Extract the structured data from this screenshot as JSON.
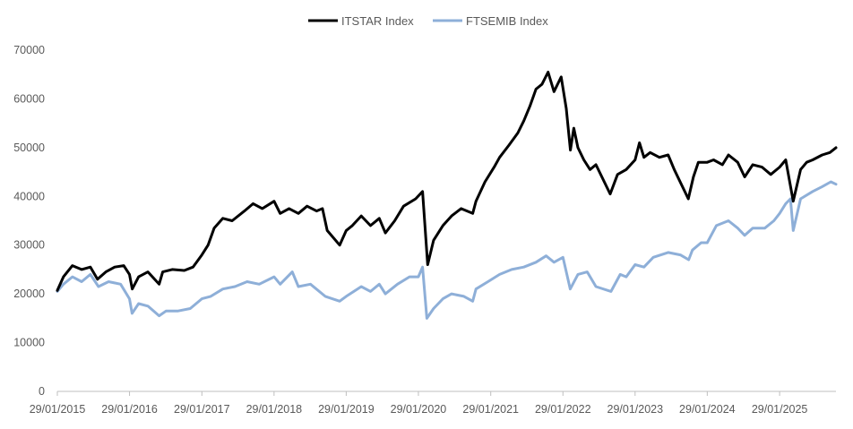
{
  "chart_data": {
    "type": "line",
    "title": "",
    "xlabel": "",
    "ylabel": "",
    "ylim": [
      0,
      70000
    ],
    "yticks": [
      0,
      10000,
      20000,
      30000,
      40000,
      50000,
      60000,
      70000
    ],
    "xlim": [
      "2015-01-29",
      "2025-11-10"
    ],
    "xticks": [
      "29/01/2015",
      "29/01/2016",
      "29/01/2017",
      "29/01/2018",
      "29/01/2019",
      "29/01/2020",
      "29/01/2021",
      "29/01/2022",
      "29/01/2023",
      "29/01/2024",
      "29/01/2025"
    ],
    "grid": false,
    "legend": "top-center",
    "series": [
      {
        "name": "ITSTAR Index",
        "color": "#000000",
        "points": [
          [
            "2015-01-29",
            20700
          ],
          [
            "2015-03-01",
            23500
          ],
          [
            "2015-04-15",
            25800
          ],
          [
            "2015-06-01",
            25000
          ],
          [
            "2015-07-15",
            25500
          ],
          [
            "2015-08-20",
            23000
          ],
          [
            "2015-10-01",
            24500
          ],
          [
            "2015-11-15",
            25500
          ],
          [
            "2015-12-31",
            25800
          ],
          [
            "2016-01-29",
            24000
          ],
          [
            "2016-02-12",
            21000
          ],
          [
            "2016-03-15",
            23500
          ],
          [
            "2016-05-01",
            24500
          ],
          [
            "2016-06-27",
            22000
          ],
          [
            "2016-07-15",
            24500
          ],
          [
            "2016-09-01",
            25000
          ],
          [
            "2016-11-01",
            24800
          ],
          [
            "2016-12-15",
            25500
          ],
          [
            "2017-01-29",
            28000
          ],
          [
            "2017-03-01",
            30000
          ],
          [
            "2017-04-01",
            33500
          ],
          [
            "2017-05-15",
            35500
          ],
          [
            "2017-07-01",
            35000
          ],
          [
            "2017-09-01",
            37000
          ],
          [
            "2017-10-15",
            38500
          ],
          [
            "2017-12-01",
            37500
          ],
          [
            "2018-01-29",
            39000
          ],
          [
            "2018-03-01",
            36500
          ],
          [
            "2018-04-15",
            37500
          ],
          [
            "2018-06-01",
            36500
          ],
          [
            "2018-07-15",
            38000
          ],
          [
            "2018-09-01",
            37000
          ],
          [
            "2018-10-01",
            37500
          ],
          [
            "2018-10-25",
            33000
          ],
          [
            "2018-12-27",
            30000
          ],
          [
            "2019-01-29",
            33000
          ],
          [
            "2019-03-01",
            34000
          ],
          [
            "2019-04-15",
            36000
          ],
          [
            "2019-06-01",
            34000
          ],
          [
            "2019-07-15",
            35500
          ],
          [
            "2019-08-15",
            32500
          ],
          [
            "2019-10-01",
            35000
          ],
          [
            "2019-11-15",
            38000
          ],
          [
            "2020-01-15",
            39500
          ],
          [
            "2020-02-19",
            41000
          ],
          [
            "2020-03-16",
            26000
          ],
          [
            "2020-04-15",
            31000
          ],
          [
            "2020-06-01",
            34000
          ],
          [
            "2020-07-15",
            36000
          ],
          [
            "2020-09-01",
            37500
          ],
          [
            "2020-10-30",
            36500
          ],
          [
            "2020-11-15",
            39000
          ],
          [
            "2020-12-31",
            43000
          ],
          [
            "2021-02-15",
            46000
          ],
          [
            "2021-03-15",
            48000
          ],
          [
            "2021-05-01",
            50500
          ],
          [
            "2021-06-15",
            53000
          ],
          [
            "2021-07-15",
            55500
          ],
          [
            "2021-08-15",
            58500
          ],
          [
            "2021-09-15",
            62000
          ],
          [
            "2021-10-15",
            63000
          ],
          [
            "2021-11-15",
            65500
          ],
          [
            "2021-12-15",
            61500
          ],
          [
            "2022-01-20",
            64500
          ],
          [
            "2022-02-15",
            58000
          ],
          [
            "2022-03-08",
            49500
          ],
          [
            "2022-03-25",
            54000
          ],
          [
            "2022-04-15",
            50000
          ],
          [
            "2022-05-15",
            47500
          ],
          [
            "2022-06-15",
            45500
          ],
          [
            "2022-07-15",
            46500
          ],
          [
            "2022-09-25",
            40500
          ],
          [
            "2022-11-01",
            44500
          ],
          [
            "2022-12-15",
            45500
          ],
          [
            "2023-01-29",
            47500
          ],
          [
            "2023-02-20",
            51000
          ],
          [
            "2023-03-15",
            48000
          ],
          [
            "2023-04-15",
            49000
          ],
          [
            "2023-06-01",
            48000
          ],
          [
            "2023-07-15",
            48500
          ],
          [
            "2023-08-15",
            45500
          ],
          [
            "2023-10-25",
            39500
          ],
          [
            "2023-11-20",
            44000
          ],
          [
            "2023-12-15",
            47000
          ],
          [
            "2024-01-29",
            47000
          ],
          [
            "2024-03-01",
            47500
          ],
          [
            "2024-04-15",
            46500
          ],
          [
            "2024-05-15",
            48500
          ],
          [
            "2024-07-01",
            47000
          ],
          [
            "2024-08-05",
            44000
          ],
          [
            "2024-09-15",
            46500
          ],
          [
            "2024-11-01",
            46000
          ],
          [
            "2024-12-15",
            44500
          ],
          [
            "2025-01-29",
            46000
          ],
          [
            "2025-03-01",
            47500
          ],
          [
            "2025-04-08",
            39000
          ],
          [
            "2025-05-15",
            45500
          ],
          [
            "2025-06-15",
            47000
          ],
          [
            "2025-07-15",
            47500
          ],
          [
            "2025-09-01",
            48500
          ],
          [
            "2025-10-10",
            49000
          ],
          [
            "2025-11-10",
            50000
          ]
        ]
      },
      {
        "name": "FTSEMIB Index",
        "color": "#8EAFD8",
        "points": [
          [
            "2015-01-29",
            20500
          ],
          [
            "2015-03-01",
            22000
          ],
          [
            "2015-04-15",
            23500
          ],
          [
            "2015-06-01",
            22500
          ],
          [
            "2015-07-15",
            24000
          ],
          [
            "2015-08-25",
            21500
          ],
          [
            "2015-10-15",
            22500
          ],
          [
            "2015-12-15",
            22000
          ],
          [
            "2016-01-29",
            19000
          ],
          [
            "2016-02-11",
            16000
          ],
          [
            "2016-03-15",
            18000
          ],
          [
            "2016-05-01",
            17500
          ],
          [
            "2016-06-27",
            15500
          ],
          [
            "2016-08-01",
            16500
          ],
          [
            "2016-10-01",
            16500
          ],
          [
            "2016-12-01",
            17000
          ],
          [
            "2017-01-29",
            19000
          ],
          [
            "2017-03-15",
            19500
          ],
          [
            "2017-05-15",
            21000
          ],
          [
            "2017-07-15",
            21500
          ],
          [
            "2017-09-15",
            22500
          ],
          [
            "2017-11-15",
            22000
          ],
          [
            "2018-01-29",
            23500
          ],
          [
            "2018-03-01",
            22000
          ],
          [
            "2018-05-01",
            24500
          ],
          [
            "2018-06-01",
            21500
          ],
          [
            "2018-08-01",
            22000
          ],
          [
            "2018-10-15",
            19500
          ],
          [
            "2018-12-27",
            18500
          ],
          [
            "2019-01-29",
            19500
          ],
          [
            "2019-04-15",
            21500
          ],
          [
            "2019-06-01",
            20500
          ],
          [
            "2019-07-15",
            22000
          ],
          [
            "2019-08-15",
            20000
          ],
          [
            "2019-10-15",
            22000
          ],
          [
            "2019-12-15",
            23500
          ],
          [
            "2020-01-29",
            23500
          ],
          [
            "2020-02-19",
            25500
          ],
          [
            "2020-03-12",
            15000
          ],
          [
            "2020-04-15",
            17000
          ],
          [
            "2020-06-01",
            19000
          ],
          [
            "2020-07-15",
            20000
          ],
          [
            "2020-09-15",
            19500
          ],
          [
            "2020-10-30",
            18500
          ],
          [
            "2020-11-15",
            21000
          ],
          [
            "2021-01-15",
            22500
          ],
          [
            "2021-03-15",
            24000
          ],
          [
            "2021-05-15",
            25000
          ],
          [
            "2021-07-15",
            25500
          ],
          [
            "2021-09-15",
            26500
          ],
          [
            "2021-11-05",
            27800
          ],
          [
            "2021-12-15",
            26500
          ],
          [
            "2022-01-29",
            27500
          ],
          [
            "2022-03-07",
            21000
          ],
          [
            "2022-04-15",
            24000
          ],
          [
            "2022-06-01",
            24500
          ],
          [
            "2022-07-15",
            21500
          ],
          [
            "2022-09-29",
            20500
          ],
          [
            "2022-11-15",
            24000
          ],
          [
            "2022-12-15",
            23500
          ],
          [
            "2023-01-29",
            26000
          ],
          [
            "2023-03-15",
            25500
          ],
          [
            "2023-05-01",
            27500
          ],
          [
            "2023-07-15",
            28500
          ],
          [
            "2023-09-15",
            28000
          ],
          [
            "2023-10-27",
            27000
          ],
          [
            "2023-11-15",
            29000
          ],
          [
            "2023-12-29",
            30500
          ],
          [
            "2024-01-29",
            30500
          ],
          [
            "2024-03-15",
            34000
          ],
          [
            "2024-05-15",
            35000
          ],
          [
            "2024-07-01",
            33500
          ],
          [
            "2024-08-05",
            32000
          ],
          [
            "2024-09-15",
            33500
          ],
          [
            "2024-11-15",
            33500
          ],
          [
            "2024-12-31",
            35000
          ],
          [
            "2025-01-29",
            36500
          ],
          [
            "2025-03-01",
            38500
          ],
          [
            "2025-03-25",
            39500
          ],
          [
            "2025-04-08",
            33000
          ],
          [
            "2025-05-15",
            39500
          ],
          [
            "2025-07-15",
            41000
          ],
          [
            "2025-09-01",
            42000
          ],
          [
            "2025-10-15",
            43000
          ],
          [
            "2025-11-10",
            42500
          ]
        ]
      }
    ]
  }
}
